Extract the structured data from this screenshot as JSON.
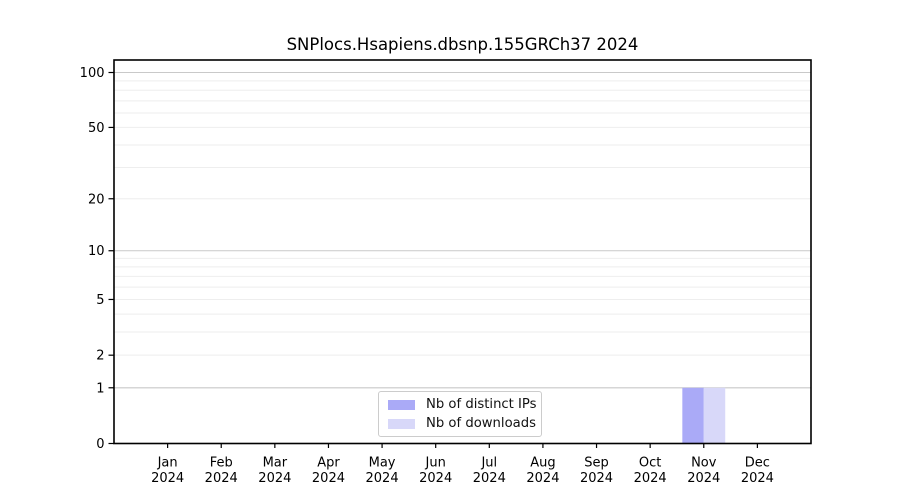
{
  "chart_data": {
    "type": "bar",
    "title": "SNPlocs.Hsapiens.dbsnp.155GRCh37 2024",
    "x_months": [
      "Jan",
      "Feb",
      "Mar",
      "Apr",
      "May",
      "Jun",
      "Jul",
      "Aug",
      "Sep",
      "Oct",
      "Nov",
      "Dec"
    ],
    "x_year": "2024",
    "series": [
      {
        "name": "Nb of distinct IPs",
        "color": "#aaaaf7",
        "values": [
          0,
          0,
          0,
          0,
          0,
          0,
          0,
          0,
          0,
          0,
          1,
          0
        ]
      },
      {
        "name": "Nb of downloads",
        "color": "#d8d8f9",
        "values": [
          0,
          0,
          0,
          0,
          0,
          0,
          0,
          0,
          0,
          0,
          1,
          0
        ]
      }
    ],
    "yscale": "log1p",
    "yticks_labeled": [
      0,
      1,
      2,
      5,
      10,
      20,
      50,
      100
    ],
    "gridlines_dark": [
      1,
      10,
      100
    ],
    "gridlines_light": [
      2,
      3,
      4,
      5,
      6,
      7,
      8,
      9,
      20,
      30,
      40,
      50,
      60,
      70,
      80,
      90
    ],
    "ylim_top_value": 117,
    "grid": "horizontal",
    "legend_position": "lower-center-inside",
    "colors": {
      "axis": "#000000",
      "grid_dark": "#c9c9c9",
      "grid_light": "#eeeeee",
      "text": "#000000",
      "legend_border": "#cccccc",
      "background": "#ffffff"
    }
  }
}
